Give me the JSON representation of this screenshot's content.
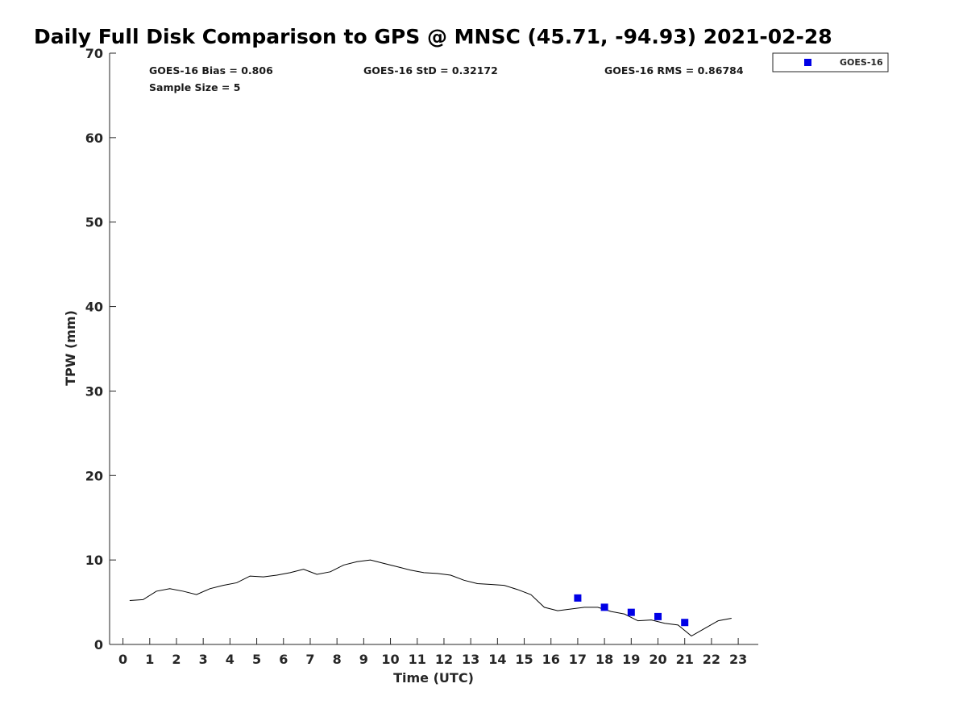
{
  "chart_data": {
    "type": "line",
    "title": "Daily Full Disk Comparison to GPS @ MNSC (45.71, -94.93) 2021-02-28",
    "xlabel": "Time (UTC)",
    "ylabel": "TPW (mm)",
    "xlim": [
      -0.5,
      23.75
    ],
    "ylim": [
      0,
      70
    ],
    "x_ticks": [
      0,
      1,
      2,
      3,
      4,
      5,
      6,
      7,
      8,
      9,
      10,
      11,
      12,
      13,
      14,
      15,
      16,
      17,
      18,
      19,
      20,
      21,
      22,
      23
    ],
    "y_ticks": [
      0,
      10,
      20,
      30,
      40,
      50,
      60,
      70
    ],
    "grid": false,
    "legend_position": "top-right",
    "stats": {
      "bias": "GOES-16 Bias = 0.806",
      "std": "GOES-16 StD = 0.32172",
      "rms": "GOES-16 RMS = 0.86784",
      "sample": "Sample Size = 5"
    },
    "series": [
      {
        "kind": "line",
        "color": "#000000",
        "x": [
          0.25,
          0.75,
          1.25,
          1.75,
          2.25,
          2.75,
          3.25,
          3.75,
          4.25,
          4.75,
          5.25,
          5.75,
          6.25,
          6.75,
          7.25,
          7.75,
          8.25,
          8.75,
          9.25,
          9.75,
          10.25,
          10.75,
          11.25,
          11.75,
          12.25,
          12.75,
          13.25,
          13.75,
          14.25,
          14.75,
          15.25,
          15.75,
          16.25,
          16.75,
          17.25,
          17.75,
          18.25,
          18.75,
          19.25,
          19.75,
          20.25,
          20.75,
          21.25,
          21.75,
          22.25,
          22.75
        ],
        "values": [
          5.2,
          5.3,
          6.3,
          6.6,
          6.3,
          5.9,
          6.6,
          7.0,
          7.3,
          8.1,
          8.0,
          8.2,
          8.5,
          8.9,
          8.3,
          8.6,
          9.4,
          9.8,
          10.0,
          9.6,
          9.2,
          8.8,
          8.5,
          8.4,
          8.2,
          7.6,
          7.2,
          7.1,
          7.0,
          6.5,
          5.9,
          4.4,
          4.0,
          4.2,
          4.4,
          4.4,
          3.9,
          3.6,
          2.8,
          2.9,
          2.5,
          2.3,
          1.0,
          1.9,
          2.8,
          3.1
        ]
      },
      {
        "kind": "scatter",
        "name": "GOES-16",
        "color": "#0000e6",
        "x": [
          17,
          18,
          19,
          20,
          21
        ],
        "values": [
          5.5,
          4.4,
          3.8,
          3.3,
          2.6
        ]
      }
    ]
  }
}
